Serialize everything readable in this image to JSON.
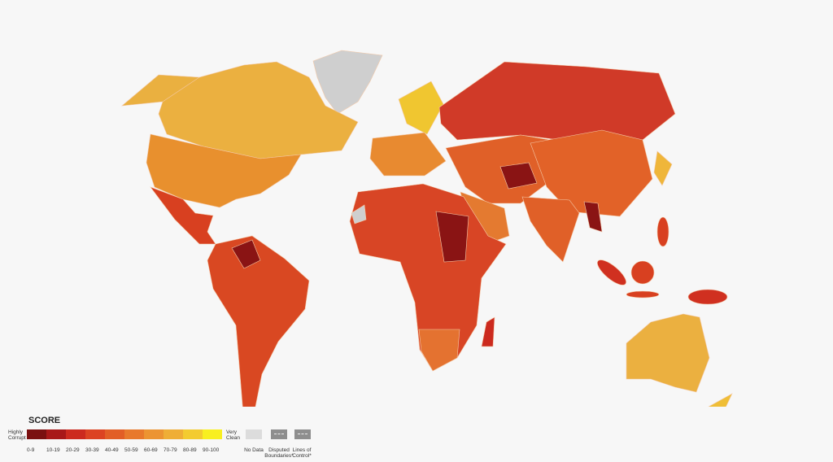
{
  "legend": {
    "title": "SCORE",
    "low_label": "Highly Corrupt",
    "high_label": "Very Clean",
    "bins": [
      {
        "label": "0-9",
        "color": "#7a1010"
      },
      {
        "label": "10-19",
        "color": "#a81818"
      },
      {
        "label": "20-29",
        "color": "#cc2a1e"
      },
      {
        "label": "30-39",
        "color": "#dc4322"
      },
      {
        "label": "40-49",
        "color": "#e25e26"
      },
      {
        "label": "50-59",
        "color": "#e8792c"
      },
      {
        "label": "60-69",
        "color": "#ec9432"
      },
      {
        "label": "70-79",
        "color": "#efae36"
      },
      {
        "label": "80-89",
        "color": "#f3cb30"
      },
      {
        "label": "90-100",
        "color": "#f8ef20"
      }
    ],
    "no_data": "No Data",
    "disputed": "Disputed Boundaries*",
    "lines_of_control": "Lines of Control*"
  }
}
